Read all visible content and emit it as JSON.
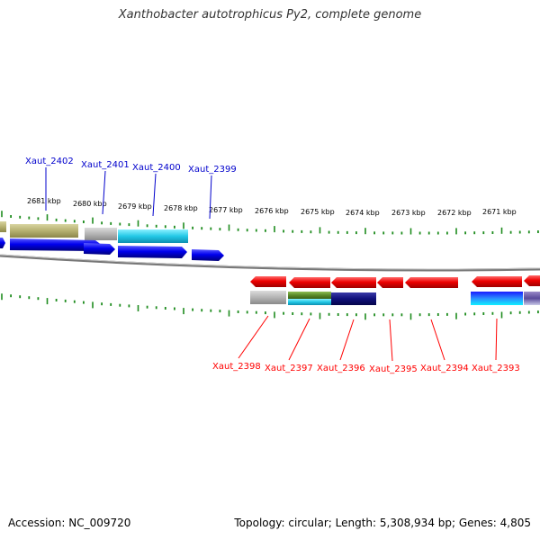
{
  "title": "Xanthobacter autotrophicus Py2, complete genome",
  "footer": {
    "accession": "Accession: NC_009720",
    "summary": "Topology: circular; Length: 5,308,934 bp; Genes: 4,805"
  },
  "kbp_labels": [
    "2681 kbp",
    "2680 kbp",
    "2679 kbp",
    "2678 kbp",
    "2677 kbp",
    "2676 kbp",
    "2675 kbp",
    "2674 kbp",
    "2673 kbp",
    "2672 kbp",
    "2671 kbp"
  ],
  "forward_gene_labels": [
    "Xaut_2402",
    "Xaut_2401",
    "Xaut_2400",
    "Xaut_2399"
  ],
  "reverse_gene_labels": [
    "Xaut_2398",
    "Xaut_2397",
    "Xaut_2396",
    "Xaut_2395",
    "Xaut_2394",
    "Xaut_2393"
  ],
  "colors": {
    "forward_strand": "#0000cc",
    "reverse_strand": "#ff0000",
    "tick": "#1e8c1e",
    "backbone": "#888888",
    "olive": "#b5b070",
    "grey": "#b4b4b4",
    "cyan": "#22c8e6",
    "navy": "#10107a",
    "green": "#5a8a2a"
  }
}
